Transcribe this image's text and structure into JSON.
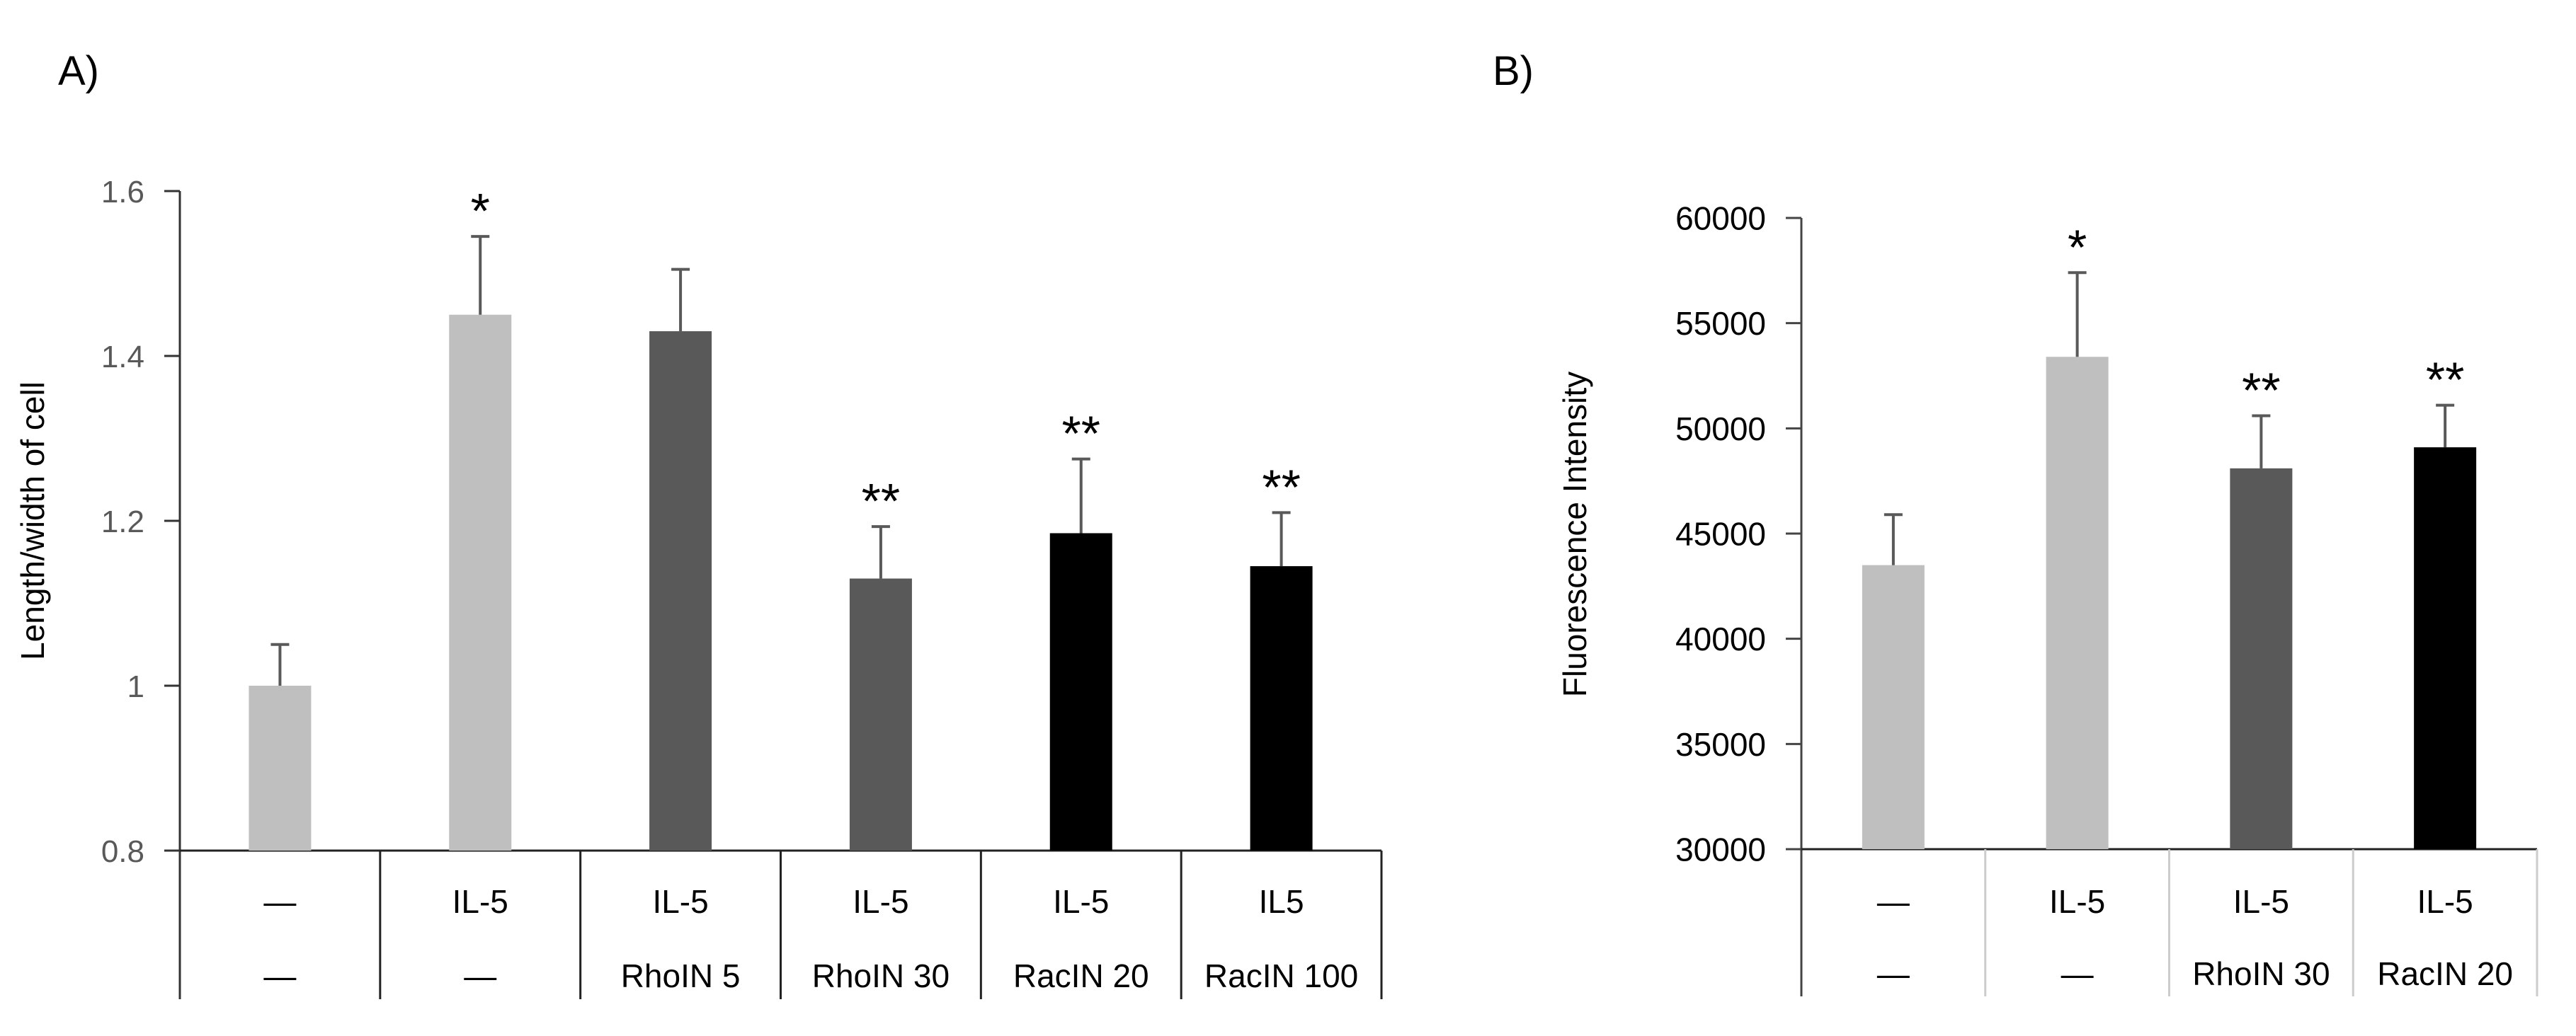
{
  "chart_data": [
    {
      "type": "bar",
      "panel_label": "A)",
      "ylabel": "Length/width of cell",
      "ylim": [
        0.8,
        1.6
      ],
      "yticks": [
        0.8,
        1,
        1.2,
        1.4,
        1.6
      ],
      "ytick_labels": [
        "0.8",
        "1",
        "1.2",
        "1.4",
        "1.6"
      ],
      "categories": [
        {
          "row1": "—",
          "row2": "—"
        },
        {
          "row1": "IL-5",
          "row2": "—"
        },
        {
          "row1": "IL-5",
          "row2": "RhoIN 5"
        },
        {
          "row1": "IL-5",
          "row2": "RhoIN 30"
        },
        {
          "row1": "IL-5",
          "row2": "RacIN 20"
        },
        {
          "row1": "IL5",
          "row2": "RacIN 100"
        }
      ],
      "values": [
        1.0,
        1.45,
        1.43,
        1.13,
        1.185,
        1.145
      ],
      "errors": [
        0.05,
        0.095,
        0.075,
        0.063,
        0.09,
        0.065
      ],
      "significance": [
        "",
        "*",
        "",
        "**",
        "**",
        "**"
      ],
      "colors": [
        "#bfbfbf",
        "#bfbfbf",
        "#595959",
        "#595959",
        "#000000",
        "#000000"
      ]
    },
    {
      "type": "bar",
      "panel_label": "B)",
      "ylabel": "Fluorescence Intensity",
      "ylim": [
        30000,
        60000
      ],
      "yticks": [
        30000,
        35000,
        40000,
        45000,
        50000,
        55000,
        60000
      ],
      "ytick_labels": [
        "30000",
        "35000",
        "40000",
        "45000",
        "50000",
        "55000",
        "60000"
      ],
      "categories": [
        {
          "row1": "—",
          "row2": "—"
        },
        {
          "row1": "IL-5",
          "row2": "—"
        },
        {
          "row1": "IL-5",
          "row2": "RhoIN 30"
        },
        {
          "row1": "IL-5",
          "row2": "RacIN 20"
        }
      ],
      "values": [
        43500,
        53400,
        48100,
        49100
      ],
      "errors": [
        2400,
        4000,
        2500,
        2000
      ],
      "significance": [
        "",
        "*",
        "**",
        "**"
      ],
      "colors": [
        "#bfbfbf",
        "#bfbfbf",
        "#595959",
        "#000000"
      ]
    }
  ]
}
